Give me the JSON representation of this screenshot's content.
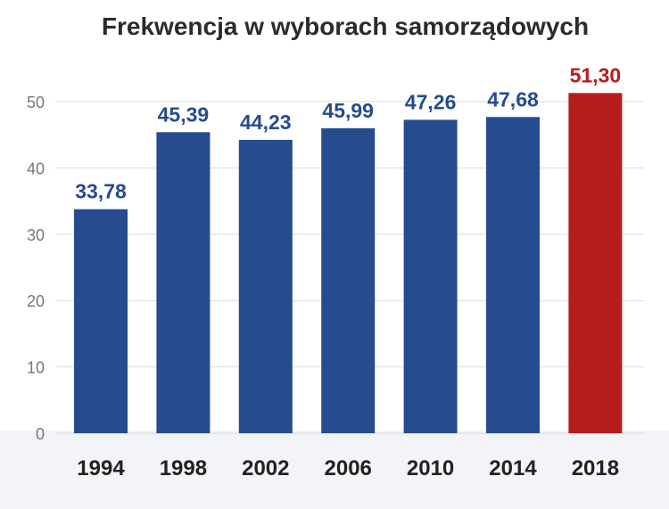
{
  "chart_data": {
    "type": "bar",
    "title": "Frekwencja w wyborach samorządowych",
    "xlabel": "",
    "ylabel": "",
    "categories": [
      "1994",
      "1998",
      "2002",
      "2006",
      "2010",
      "2014",
      "2018"
    ],
    "values": [
      33.78,
      45.39,
      44.23,
      45.99,
      47.26,
      47.68,
      51.3
    ],
    "value_labels": [
      "33,78",
      "45,39",
      "44,23",
      "45,99",
      "47,26",
      "47,68",
      "51,30"
    ],
    "ylim": [
      0,
      50
    ],
    "yticks": [
      0,
      10,
      20,
      30,
      40,
      50
    ],
    "grid": true,
    "legend": "none",
    "colors": {
      "bar": "#264b8f",
      "highlight": "#b81d1d",
      "label": "#264b8f",
      "highlight_label": "#b81d1d",
      "footer": "#f2f4f7"
    },
    "highlight_category": "2018"
  }
}
